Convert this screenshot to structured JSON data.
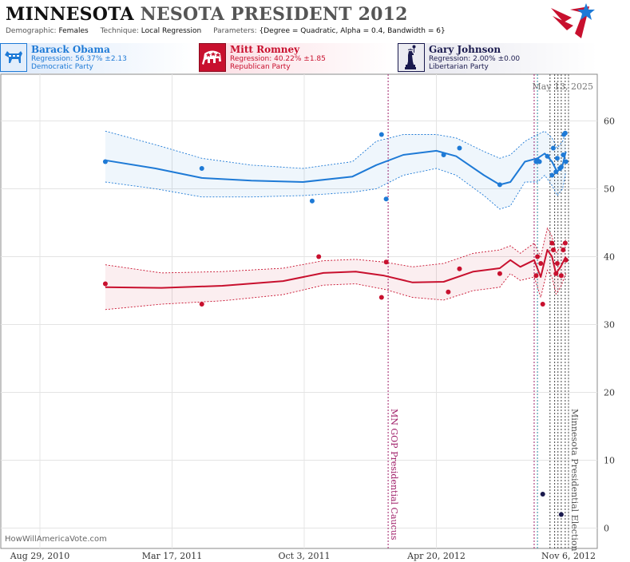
{
  "header": {
    "title_state": "MINNESOTA",
    "title_race": "NESOTA PRESIDENT 2012",
    "demographic_label": "Demographic:",
    "demographic": "Females",
    "technique_label": "Technique:",
    "technique": "Local Regression",
    "parameters_label": "Parameters:",
    "parameters": "{Degree = Quadratic, Alpha = 0.4, Bandwidth = 6}"
  },
  "candidates": [
    {
      "name": "Barack Obama",
      "regression": "Regression: 56.37% ±2.13",
      "party": "Democratic Party",
      "color": "#1e7ad6",
      "bg": "#e3eefb",
      "icon": "donkey-icon"
    },
    {
      "name": "Mitt Romney",
      "regression": "Regression: 40.22% ±1.85",
      "party": "Republican Party",
      "color": "#c8102e",
      "bg": "#fbe3e8",
      "icon": "elephant-icon"
    },
    {
      "name": "Gary Johnson",
      "regression": "Regression: 2.00% ±0.00",
      "party": "Libertarian Party",
      "color": "#1a1a4e",
      "bg": "#ebebf1",
      "icon": "statue-of-liberty-icon"
    }
  ],
  "date_stamp": "May 13, 2025",
  "watermark": "HowWillAmericaVote.com",
  "chart_data": {
    "type": "line",
    "x_range": [
      "2010-08-29",
      "2012-11-06"
    ],
    "x_ticks": [
      "Aug 29, 2010",
      "Mar 17, 2011",
      "Oct 3, 2011",
      "Apr 20, 2012",
      "Nov 6, 2012"
    ],
    "ylim": [
      -3,
      67
    ],
    "y_ticks": [
      0,
      10,
      20,
      30,
      40,
      50,
      60
    ],
    "grid": true,
    "events": [
      {
        "date": "2012-02-07",
        "label": "MN GOP Presidential Caucus",
        "color": "#a0206a"
      },
      {
        "date": "2012-11-06",
        "label": "Minnesota Presidential Election",
        "color": "#555555"
      }
    ],
    "poll_date_lines": [
      {
        "date": "2012-09-15",
        "color": "#a0206a"
      },
      {
        "date": "2012-09-20",
        "color": "#2a8aa0"
      },
      {
        "date": "2012-10-09",
        "color": "#444444"
      },
      {
        "date": "2012-10-16",
        "color": "#444444"
      },
      {
        "date": "2012-10-21",
        "color": "#444444"
      },
      {
        "date": "2012-10-26",
        "color": "#444444"
      },
      {
        "date": "2012-11-01",
        "color": "#444444"
      }
    ],
    "series": [
      {
        "name": "Barack Obama",
        "color": "#1e7ad6",
        "trend": [
          [
            "2010-12-06",
            54.2
          ],
          [
            "2011-02-20",
            53
          ],
          [
            "2011-05-01",
            51.6
          ],
          [
            "2011-07-15",
            51.2
          ],
          [
            "2011-10-01",
            51
          ],
          [
            "2011-12-15",
            51.8
          ],
          [
            "2012-01-20",
            53.5
          ],
          [
            "2012-03-01",
            55
          ],
          [
            "2012-04-20",
            55.6
          ],
          [
            "2012-05-20",
            54.8
          ],
          [
            "2012-07-01",
            52
          ],
          [
            "2012-07-25",
            50.6
          ],
          [
            "2012-08-10",
            51
          ],
          [
            "2012-09-01",
            54
          ],
          [
            "2012-09-20",
            54.5
          ],
          [
            "2012-10-01",
            55.2
          ],
          [
            "2012-10-12",
            54
          ],
          [
            "2012-10-20",
            52.5
          ],
          [
            "2012-10-28",
            53.5
          ],
          [
            "2012-11-02",
            55.5
          ]
        ],
        "upper": [
          [
            "2010-12-06",
            58.5
          ],
          [
            "2011-02-20",
            56.5
          ],
          [
            "2011-05-01",
            54.5
          ],
          [
            "2011-07-15",
            53.5
          ],
          [
            "2011-10-01",
            53
          ],
          [
            "2011-12-15",
            54
          ],
          [
            "2012-01-20",
            57
          ],
          [
            "2012-03-01",
            58
          ],
          [
            "2012-04-20",
            58
          ],
          [
            "2012-05-20",
            57.5
          ],
          [
            "2012-07-01",
            55.5
          ],
          [
            "2012-07-25",
            54.5
          ],
          [
            "2012-08-10",
            55
          ],
          [
            "2012-09-01",
            57
          ],
          [
            "2012-09-20",
            58
          ],
          [
            "2012-10-01",
            58.5
          ],
          [
            "2012-10-12",
            57.5
          ],
          [
            "2012-10-20",
            56
          ],
          [
            "2012-10-28",
            57
          ],
          [
            "2012-11-02",
            58.5
          ]
        ],
        "lower": [
          [
            "2010-12-06",
            51
          ],
          [
            "2011-02-20",
            50
          ],
          [
            "2011-05-01",
            48.8
          ],
          [
            "2011-07-15",
            48.8
          ],
          [
            "2011-10-01",
            49
          ],
          [
            "2011-12-15",
            49.5
          ],
          [
            "2012-01-20",
            50
          ],
          [
            "2012-03-01",
            52
          ],
          [
            "2012-04-20",
            53
          ],
          [
            "2012-05-20",
            52
          ],
          [
            "2012-07-01",
            49
          ],
          [
            "2012-07-25",
            47
          ],
          [
            "2012-08-10",
            47.5
          ],
          [
            "2012-09-01",
            51
          ],
          [
            "2012-09-20",
            51
          ],
          [
            "2012-10-01",
            52
          ],
          [
            "2012-10-12",
            50.5
          ],
          [
            "2012-10-20",
            49
          ],
          [
            "2012-10-28",
            50
          ],
          [
            "2012-11-02",
            52.5
          ]
        ],
        "points": [
          [
            "2010-12-06",
            54
          ],
          [
            "2011-05-01",
            53
          ],
          [
            "2011-10-15",
            48.2
          ],
          [
            "2012-01-28",
            58
          ],
          [
            "2012-02-04",
            48.5
          ],
          [
            "2012-05-01",
            55
          ],
          [
            "2012-05-25",
            56
          ],
          [
            "2012-07-25",
            50.6
          ],
          [
            "2012-09-18",
            54
          ],
          [
            "2012-09-20",
            54.2
          ],
          [
            "2012-09-23",
            54
          ],
          [
            "2012-10-05",
            54.8
          ],
          [
            "2012-10-12",
            52
          ],
          [
            "2012-10-14",
            56
          ],
          [
            "2012-10-18",
            52.5
          ],
          [
            "2012-10-20",
            54.5
          ],
          [
            "2012-10-24",
            53
          ],
          [
            "2012-10-26",
            53.2
          ],
          [
            "2012-10-29",
            55
          ],
          [
            "2012-10-30",
            58
          ],
          [
            "2012-11-01",
            58.2
          ],
          [
            "2012-11-02",
            54
          ]
        ]
      },
      {
        "name": "Mitt Romney",
        "color": "#c8102e",
        "trend": [
          [
            "2010-12-06",
            35.5
          ],
          [
            "2011-03-01",
            35.4
          ],
          [
            "2011-06-01",
            35.7
          ],
          [
            "2011-09-01",
            36.4
          ],
          [
            "2011-11-01",
            37.6
          ],
          [
            "2011-12-20",
            37.8
          ],
          [
            "2012-02-01",
            37.2
          ],
          [
            "2012-03-15",
            36.2
          ],
          [
            "2012-05-01",
            36.3
          ],
          [
            "2012-06-15",
            37.8
          ],
          [
            "2012-07-25",
            38.3
          ],
          [
            "2012-08-10",
            39.5
          ],
          [
            "2012-08-25",
            38.5
          ],
          [
            "2012-09-15",
            39.5
          ],
          [
            "2012-09-25",
            37
          ],
          [
            "2012-10-05",
            41
          ],
          [
            "2012-10-12",
            40
          ],
          [
            "2012-10-18",
            37.5
          ],
          [
            "2012-10-25",
            38.5
          ],
          [
            "2012-11-02",
            40
          ]
        ],
        "upper": [
          [
            "2010-12-06",
            38.8
          ],
          [
            "2011-03-01",
            37.6
          ],
          [
            "2011-06-01",
            37.8
          ],
          [
            "2011-09-01",
            38.3
          ],
          [
            "2011-11-01",
            39.4
          ],
          [
            "2011-12-20",
            39.6
          ],
          [
            "2012-02-01",
            39.2
          ],
          [
            "2012-03-15",
            38.5
          ],
          [
            "2012-05-01",
            39
          ],
          [
            "2012-06-15",
            40.5
          ],
          [
            "2012-07-25",
            41
          ],
          [
            "2012-08-10",
            41.6
          ],
          [
            "2012-08-25",
            40.5
          ],
          [
            "2012-09-15",
            42
          ],
          [
            "2012-09-25",
            40
          ],
          [
            "2012-10-05",
            44.2
          ],
          [
            "2012-10-12",
            43
          ],
          [
            "2012-10-18",
            40.5
          ],
          [
            "2012-10-25",
            41.5
          ],
          [
            "2012-11-02",
            42.5
          ]
        ],
        "lower": [
          [
            "2010-12-06",
            32.2
          ],
          [
            "2011-03-01",
            33
          ],
          [
            "2011-06-01",
            33.5
          ],
          [
            "2011-09-01",
            34.4
          ],
          [
            "2011-11-01",
            35.8
          ],
          [
            "2011-12-20",
            36
          ],
          [
            "2012-02-01",
            35.2
          ],
          [
            "2012-03-15",
            34
          ],
          [
            "2012-05-01",
            33.6
          ],
          [
            "2012-06-15",
            35
          ],
          [
            "2012-07-25",
            35.5
          ],
          [
            "2012-08-10",
            37.5
          ],
          [
            "2012-08-25",
            36.5
          ],
          [
            "2012-09-15",
            37
          ],
          [
            "2012-09-25",
            34
          ],
          [
            "2012-10-05",
            38
          ],
          [
            "2012-10-12",
            37
          ],
          [
            "2012-10-18",
            34.5
          ],
          [
            "2012-10-25",
            35.5
          ],
          [
            "2012-11-02",
            37.5
          ]
        ],
        "points": [
          [
            "2010-12-06",
            36
          ],
          [
            "2011-05-01",
            33
          ],
          [
            "2011-10-25",
            40
          ],
          [
            "2012-01-28",
            34
          ],
          [
            "2012-02-04",
            39.2
          ],
          [
            "2012-05-08",
            34.8
          ],
          [
            "2012-05-25",
            38.2
          ],
          [
            "2012-07-25",
            37.5
          ],
          [
            "2012-09-18",
            37.2
          ],
          [
            "2012-09-20",
            40
          ],
          [
            "2012-09-25",
            39
          ],
          [
            "2012-09-28",
            33
          ],
          [
            "2012-10-12",
            42
          ],
          [
            "2012-10-14",
            41
          ],
          [
            "2012-10-18",
            37.5
          ],
          [
            "2012-10-20",
            39
          ],
          [
            "2012-10-26",
            37.2
          ],
          [
            "2012-10-29",
            41
          ],
          [
            "2012-11-01",
            42
          ],
          [
            "2012-11-02",
            39.5
          ]
        ]
      },
      {
        "name": "Gary Johnson",
        "color": "#1a1a4e",
        "points": [
          [
            "2012-09-28",
            5
          ],
          [
            "2012-10-26",
            2
          ]
        ]
      }
    ]
  }
}
